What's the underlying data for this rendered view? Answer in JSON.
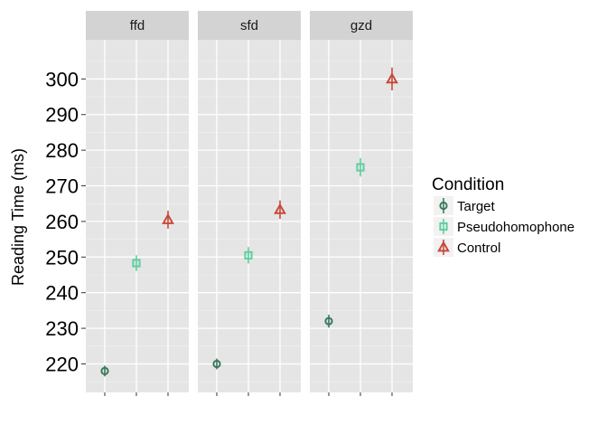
{
  "chart_data": {
    "type": "scatter",
    "facets": [
      "ffd",
      "sfd",
      "gzd"
    ],
    "ylabel": "Reading Time (ms)",
    "xlabel": "",
    "ylim": [
      212,
      311
    ],
    "yticks": [
      220,
      230,
      240,
      250,
      260,
      270,
      280,
      290,
      300
    ],
    "legend": {
      "title": "Condition",
      "placement": "right",
      "entries": [
        "Target",
        "Pseudohomophone",
        "Control"
      ]
    },
    "series": [
      {
        "name": "Target",
        "shape": "circle",
        "color": "#3b7a5e",
        "values": [
          218,
          220,
          232
        ],
        "errors": [
          1.5,
          1.5,
          1.8
        ]
      },
      {
        "name": "Pseudohomophone",
        "shape": "square",
        "color": "#5fcf9f",
        "values": [
          248.3,
          250.5,
          275.2
        ],
        "errors": [
          2.2,
          2.3,
          2.6
        ]
      },
      {
        "name": "Control",
        "shape": "triangle",
        "color": "#c8493a",
        "values": [
          260.5,
          263.3,
          300
        ],
        "errors": [
          2.5,
          2.6,
          3.2
        ]
      }
    ],
    "grid": true
  }
}
